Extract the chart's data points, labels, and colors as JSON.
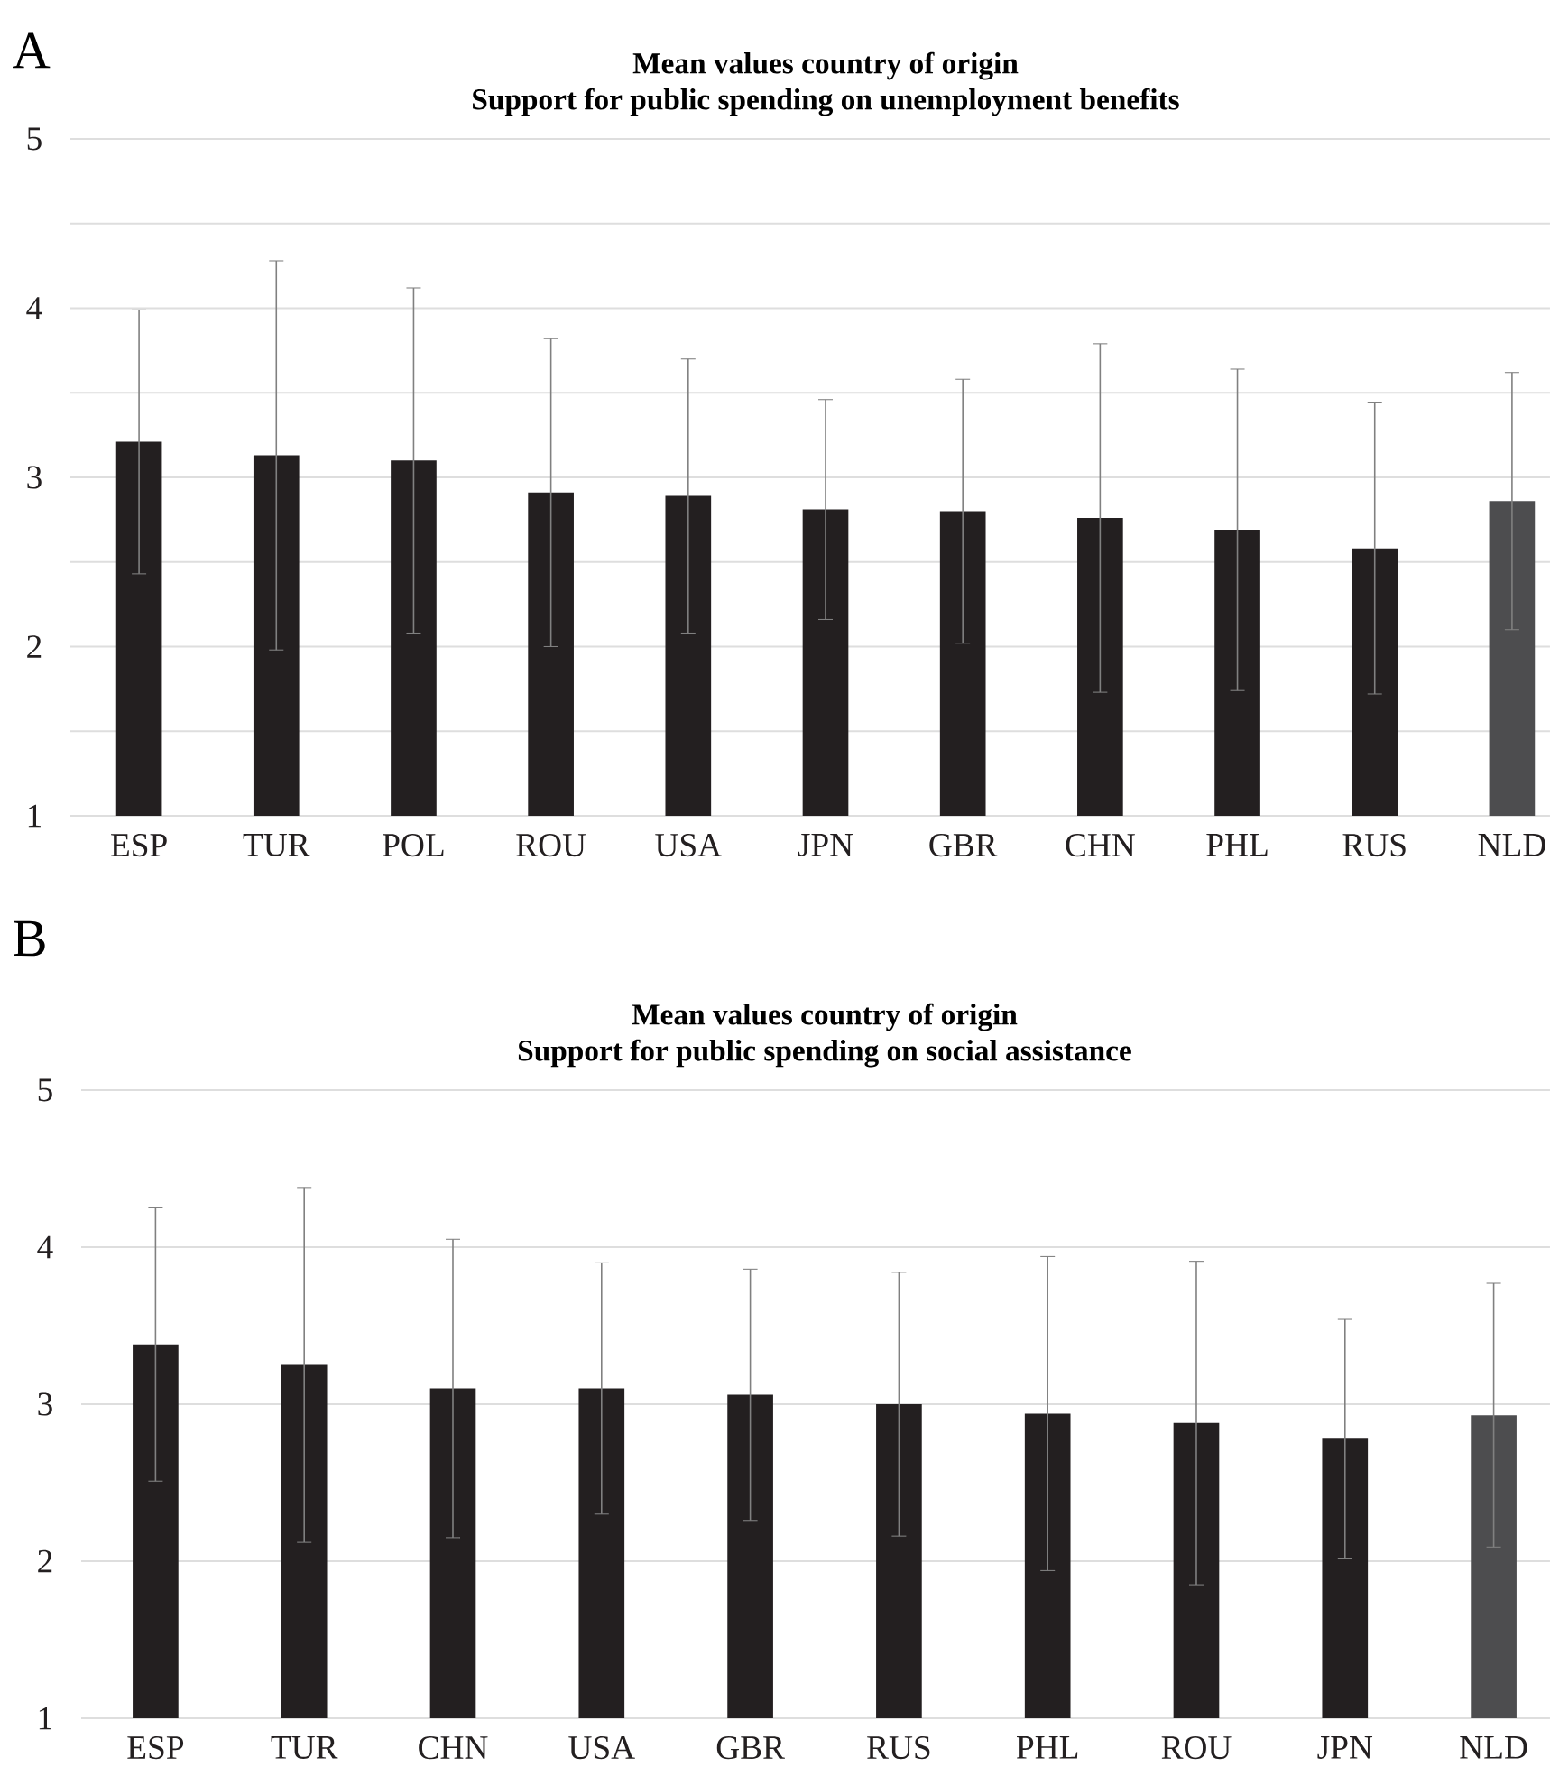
{
  "chart_data": [
    {
      "type": "bar",
      "title": "Mean values country of origin",
      "subtitle": "Support for public spending on unemployment benefits",
      "annotations": [
        "A"
      ],
      "categories": [
        "ESP",
        "TUR",
        "POL",
        "ROU",
        "USA",
        "JPN",
        "GBR",
        "CHN",
        "PHL",
        "RUS",
        "NLD"
      ],
      "values": [
        3.21,
        3.13,
        3.1,
        2.91,
        2.89,
        2.81,
        2.8,
        2.76,
        2.69,
        2.58,
        2.86
      ],
      "errors": [
        0.78,
        1.15,
        1.02,
        0.91,
        0.81,
        0.65,
        0.78,
        1.03,
        0.95,
        0.86,
        0.76
      ],
      "colors": [
        "#231f20",
        "#231f20",
        "#231f20",
        "#231f20",
        "#231f20",
        "#231f20",
        "#231f20",
        "#231f20",
        "#231f20",
        "#231f20",
        "#4d4d4f"
      ],
      "ylim": [
        1,
        5
      ],
      "yticks": [
        1,
        {
          "value": 1.5,
          "label": null
        },
        2,
        {
          "value": 2.5,
          "label": null
        },
        3,
        {
          "value": 3.5,
          "label": null
        },
        4,
        {
          "value": 4.5,
          "label": null
        },
        5
      ],
      "grid": "y"
    },
    {
      "type": "bar",
      "title": "Mean values country of origin",
      "subtitle": "Support for public spending on social assistance",
      "annotations": [
        "B"
      ],
      "categories": [
        "ESP",
        "TUR",
        "CHN",
        "USA",
        "GBR",
        "RUS",
        "PHL",
        "ROU",
        "JPN",
        "NLD"
      ],
      "values": [
        3.38,
        3.25,
        3.1,
        3.1,
        3.06,
        3.0,
        2.94,
        2.88,
        2.78,
        2.93
      ],
      "errors": [
        0.87,
        1.13,
        0.95,
        0.8,
        0.8,
        0.84,
        1.0,
        1.03,
        0.76,
        0.84
      ],
      "colors": [
        "#231f20",
        "#231f20",
        "#231f20",
        "#231f20",
        "#231f20",
        "#231f20",
        "#231f20",
        "#231f20",
        "#231f20",
        "#4d4d4f"
      ],
      "ylim": [
        1,
        5
      ],
      "yticks": [
        1,
        2,
        3,
        4,
        5
      ],
      "grid": "y"
    }
  ]
}
